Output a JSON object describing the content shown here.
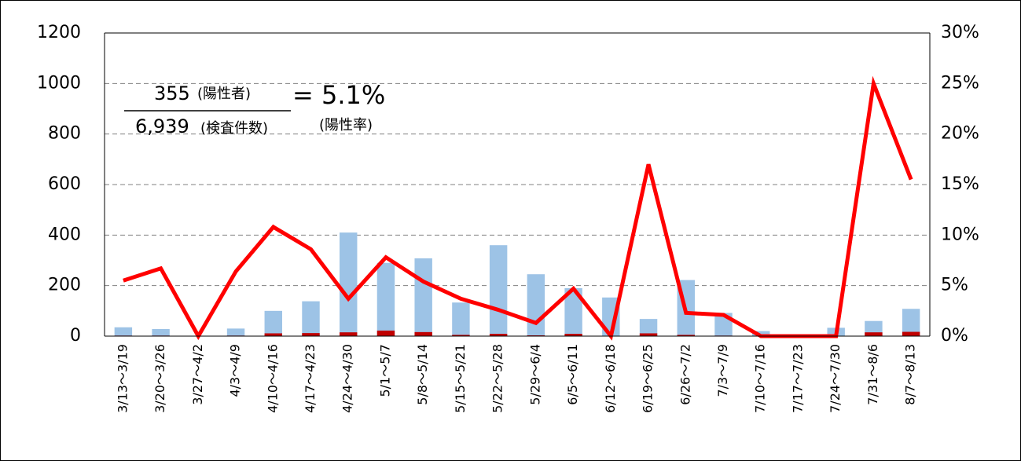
{
  "chart_data": {
    "type": "bar-line",
    "categories": [
      "3/13～3/19",
      "3/20～3/26",
      "3/27～4/2",
      "4/3～4/9",
      "4/10～4/16",
      "4/17～4/23",
      "4/24～4/30",
      "5/1～5/7",
      "5/8～5/14",
      "5/15～5/21",
      "5/22～5/28",
      "5/29～6/4",
      "6/5～6/11",
      "6/12～6/18",
      "6/19～6/25",
      "6/26～7/2",
      "7/3～7/9",
      "7/10～7/16",
      "7/17～7/23",
      "7/24～7/30",
      "7/31～8/6",
      "8/7～8/13"
    ],
    "series": [
      {
        "kind": "bar",
        "color": "#9dc3e6",
        "values": [
          35,
          28,
          0,
          30,
          100,
          138,
          410,
          290,
          308,
          133,
          360,
          245,
          190,
          153,
          68,
          222,
          92,
          20,
          0,
          33,
          60,
          108
        ]
      },
      {
        "kind": "bar",
        "color": "#c00000",
        "values": [
          2,
          2,
          0,
          2,
          11,
          12,
          15,
          22,
          16,
          5,
          9,
          3,
          9,
          0,
          11,
          5,
          2,
          0,
          0,
          0,
          15,
          17
        ]
      },
      {
        "kind": "line",
        "axis": "y2",
        "color": "#ff0000",
        "values": [
          5.5,
          6.7,
          0,
          6.4,
          10.8,
          8.6,
          3.7,
          7.8,
          5.4,
          3.7,
          2.6,
          1.3,
          4.7,
          0,
          17.0,
          2.3,
          2.1,
          0,
          0,
          0,
          25.0,
          15.5
        ]
      }
    ],
    "ylim": [
      0,
      1200
    ],
    "yticks": [
      0,
      200,
      400,
      600,
      800,
      1000,
      1200
    ],
    "y2lim": [
      0,
      30
    ],
    "y2ticks": [
      {
        "value": 0,
        "label": "0%"
      },
      {
        "value": 5,
        "label": "5%"
      },
      {
        "value": 10,
        "label": "10%"
      },
      {
        "value": 15,
        "label": "15%"
      },
      {
        "value": 20,
        "label": "20%"
      },
      {
        "value": 25,
        "label": "25%"
      },
      {
        "value": 30,
        "label": "30%"
      }
    ],
    "grid": true,
    "annotation": {
      "positives": "355",
      "positives_label": "(陽性者)",
      "equals": "= 5.1%",
      "tests": "6,939",
      "tests_label": "(検査件数)",
      "rate_label": "(陽性率)"
    }
  }
}
